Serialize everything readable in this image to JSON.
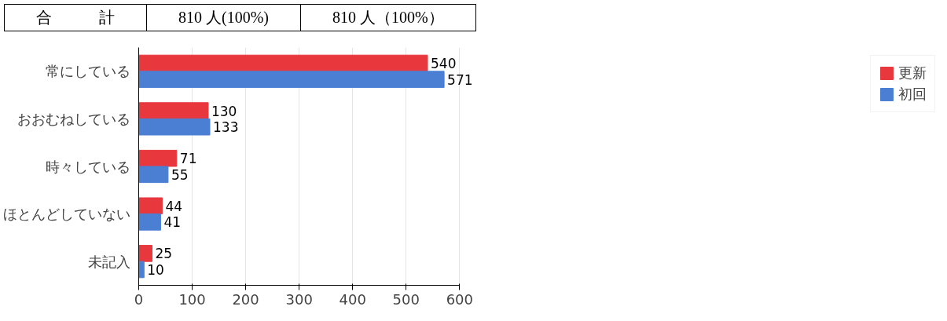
{
  "chart_data": {
    "type": "bar",
    "orientation": "horizontal",
    "categories": [
      "常にしている",
      "おおむねしている",
      "時々している",
      "ほとんどしていない",
      "未記入"
    ],
    "series": [
      {
        "name": "更新",
        "color": "#e8383d",
        "values": [
          540,
          130,
          71,
          44,
          25
        ]
      },
      {
        "name": "初回",
        "color": "#4a7fd4",
        "values": [
          571,
          133,
          55,
          41,
          10
        ]
      }
    ],
    "xlim": [
      0,
      600
    ],
    "xticks": [
      0,
      100,
      200,
      300,
      400,
      500,
      600
    ],
    "grid": "x",
    "legend": "right",
    "data_labels": true,
    "annotations": [
      "合　　　計",
      "810 人(100%)",
      "810 人（100%）"
    ]
  }
}
